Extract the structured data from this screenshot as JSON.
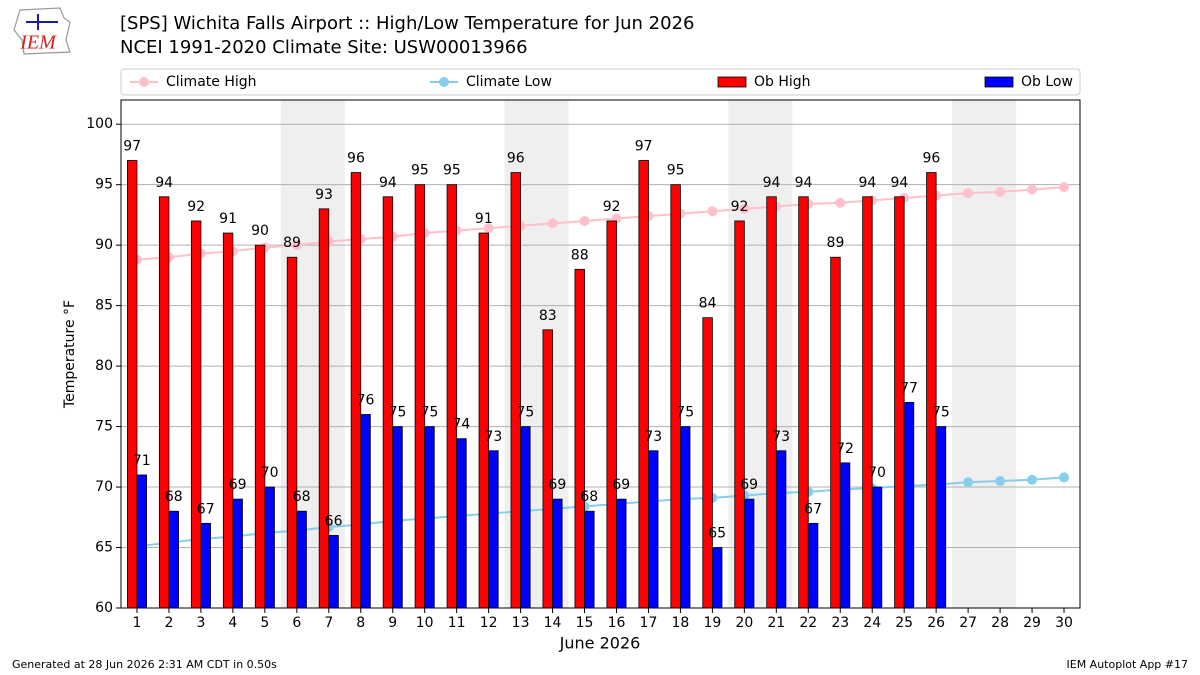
{
  "logo": "IEM",
  "footer": {
    "left": "Generated at 28 Jun 2026 2:31 AM CDT in 0.50s",
    "right": "IEM Autoplot App #17"
  },
  "chart_data": {
    "type": "bar",
    "title": "[SPS] Wichita Falls Airport :: High/Low Temperature for Jun 2026",
    "subtitle": "NCEI 1991-2020 Climate Site: USW00013966",
    "xlabel": "June 2026",
    "ylabel": "Temperature °F",
    "x": [
      1,
      2,
      3,
      4,
      5,
      6,
      7,
      8,
      9,
      10,
      11,
      12,
      13,
      14,
      15,
      16,
      17,
      18,
      19,
      20,
      21,
      22,
      23,
      24,
      25,
      26,
      27,
      28,
      29,
      30
    ],
    "xlim": [
      0.5,
      30.5
    ],
    "xticks": [
      1,
      2,
      3,
      4,
      5,
      6,
      7,
      8,
      9,
      10,
      11,
      12,
      13,
      14,
      15,
      16,
      17,
      18,
      19,
      20,
      21,
      22,
      23,
      24,
      25,
      26,
      27,
      28,
      29,
      30
    ],
    "ylim": [
      60,
      102
    ],
    "yticks": [
      60,
      65,
      70,
      75,
      80,
      85,
      90,
      95,
      100
    ],
    "grid": true,
    "weekend_bands": [
      [
        6,
        7
      ],
      [
        13,
        14
      ],
      [
        20,
        21
      ],
      [
        27,
        28
      ]
    ],
    "series": [
      {
        "name": "Climate High",
        "kind": "line",
        "color": "#ffc0cb",
        "values": [
          88.8,
          89.0,
          89.3,
          89.5,
          89.8,
          90.0,
          90.3,
          90.5,
          90.7,
          91.0,
          91.2,
          91.4,
          91.6,
          91.8,
          92.0,
          92.2,
          92.4,
          92.6,
          92.8,
          93.0,
          93.2,
          93.4,
          93.5,
          93.7,
          93.9,
          94.1,
          94.3,
          94.4,
          94.6,
          94.8
        ]
      },
      {
        "name": "Climate Low",
        "kind": "line",
        "color": "#87ceeb",
        "values": [
          65.1,
          65.4,
          65.7,
          65.9,
          66.2,
          66.4,
          66.7,
          66.9,
          67.2,
          67.4,
          67.6,
          67.8,
          68.0,
          68.2,
          68.4,
          68.6,
          68.8,
          69.0,
          69.1,
          69.3,
          69.5,
          69.6,
          69.8,
          69.9,
          70.1,
          70.2,
          70.4,
          70.5,
          70.6,
          70.8
        ]
      },
      {
        "name": "Ob High",
        "kind": "bar",
        "offset": -0.15,
        "color": "#ff0000",
        "values": [
          97,
          94,
          92,
          91,
          90,
          89,
          93,
          96,
          94,
          95,
          95,
          91,
          96,
          83,
          88,
          92,
          97,
          95,
          84,
          92,
          94,
          94,
          89,
          94,
          94,
          96,
          null,
          null,
          null,
          null
        ]
      },
      {
        "name": "Ob Low",
        "kind": "bar",
        "offset": 0.15,
        "color": "#0000ff",
        "values": [
          71,
          68,
          67,
          69,
          70,
          68,
          66,
          76,
          75,
          75,
          74,
          73,
          75,
          69,
          68,
          69,
          73,
          75,
          65,
          69,
          73,
          67,
          72,
          70,
          77,
          75,
          null,
          null,
          null,
          null
        ]
      }
    ]
  }
}
